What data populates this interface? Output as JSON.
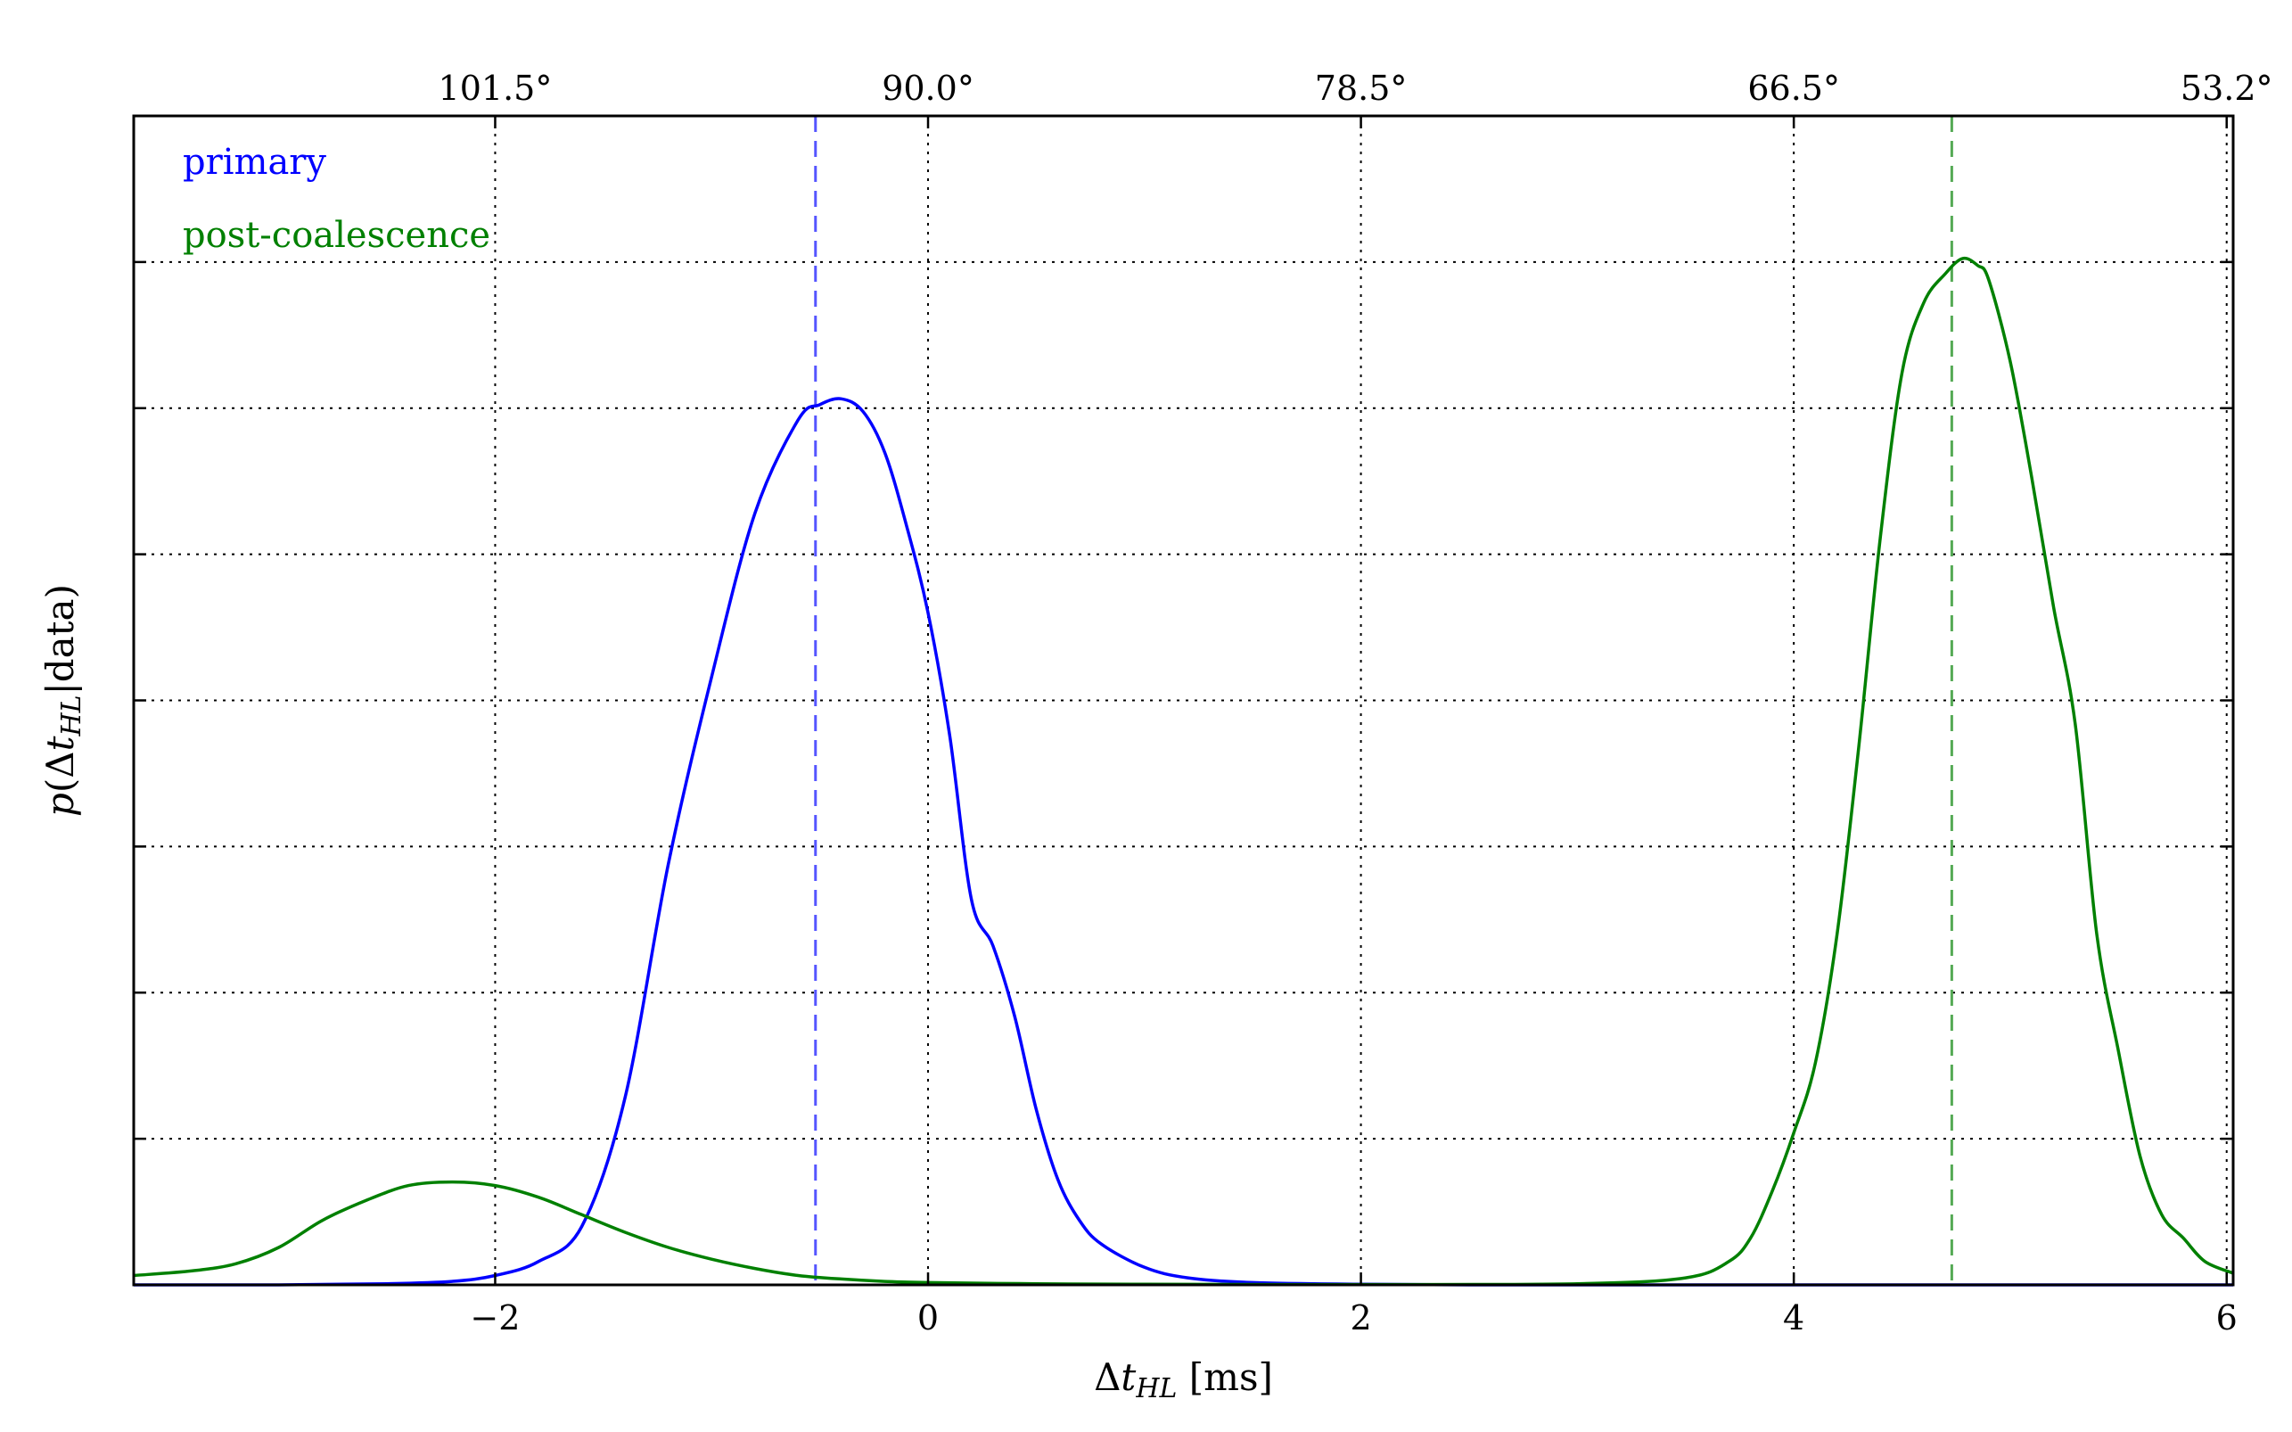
{
  "chart_data": {
    "type": "line",
    "xlim": [
      -3.67,
      6.03
    ],
    "ylim": [
      0,
      1.0
    ],
    "x_ticks": [
      {
        "value": -2,
        "label": "−2"
      },
      {
        "value": 0,
        "label": "0"
      },
      {
        "value": 2,
        "label": "2"
      },
      {
        "value": 4,
        "label": "4"
      },
      {
        "value": 6,
        "label": "6"
      }
    ],
    "top_ticks": [
      {
        "value": -2.0,
        "label": "101.5°"
      },
      {
        "value": 0.0,
        "label": "90.0°"
      },
      {
        "value": 2.0,
        "label": "78.5°"
      },
      {
        "value": 4.0,
        "label": "66.5°"
      },
      {
        "value": 6.0,
        "label": "53.2°"
      }
    ],
    "y_grid": [
      0.125,
      0.25,
      0.375,
      0.5,
      0.625,
      0.75,
      0.875
    ],
    "grid": true,
    "legend_placement": "top-left",
    "xlabel": {
      "prefix": "Δ",
      "var": "t",
      "sub": "HL",
      "unit": " [ms]"
    },
    "ylabel": {
      "p": "p",
      "open": "(Δ",
      "var": "t",
      "sub": "HL",
      "rest": "|data)"
    },
    "series": [
      {
        "name": "primary",
        "color": "#0000ff",
        "x": [
          -3.67,
          -3.0,
          -2.5,
          -2.2,
          -2.0,
          -1.8,
          -1.6,
          -1.4,
          -1.2,
          -1.0,
          -0.8,
          -0.6,
          -0.5,
          -0.4,
          -0.3,
          -0.2,
          -0.1,
          0.0,
          0.1,
          0.2,
          0.3,
          0.4,
          0.5,
          0.6,
          0.7,
          0.8,
          1.0,
          1.2,
          1.5,
          2.0,
          2.5,
          3.0,
          4.0,
          5.0,
          6.03
        ],
        "y": [
          0.0,
          0.0,
          0.001,
          0.003,
          0.008,
          0.02,
          0.05,
          0.16,
          0.36,
          0.52,
          0.66,
          0.74,
          0.753,
          0.758,
          0.747,
          0.712,
          0.65,
          0.575,
          0.47,
          0.33,
          0.29,
          0.23,
          0.15,
          0.09,
          0.055,
          0.035,
          0.015,
          0.006,
          0.002,
          0.0005,
          0.0,
          0.0,
          0.0,
          0.0,
          0.0
        ]
      },
      {
        "name": "post-coalescence",
        "color": "#008000",
        "x": [
          -3.67,
          -3.4,
          -3.2,
          -3.0,
          -2.8,
          -2.6,
          -2.4,
          -2.2,
          -2.0,
          -1.8,
          -1.6,
          -1.4,
          -1.2,
          -1.0,
          -0.8,
          -0.6,
          -0.4,
          -0.2,
          0.0,
          0.5,
          1.0,
          2.0,
          3.0,
          3.5,
          3.7,
          3.8,
          3.9,
          4.0,
          4.1,
          4.2,
          4.3,
          4.4,
          4.5,
          4.6,
          4.7,
          4.78,
          4.85,
          4.9,
          5.0,
          5.1,
          5.2,
          5.3,
          5.4,
          5.5,
          5.6,
          5.7,
          5.8,
          5.9,
          6.03
        ],
        "y": [
          0.008,
          0.012,
          0.018,
          0.032,
          0.055,
          0.072,
          0.085,
          0.088,
          0.085,
          0.075,
          0.06,
          0.045,
          0.032,
          0.022,
          0.014,
          0.008,
          0.005,
          0.003,
          0.002,
          0.001,
          0.0005,
          0.0003,
          0.001,
          0.006,
          0.02,
          0.04,
          0.08,
          0.13,
          0.19,
          0.3,
          0.46,
          0.64,
          0.78,
          0.84,
          0.865,
          0.878,
          0.872,
          0.86,
          0.79,
          0.69,
          0.58,
          0.48,
          0.3,
          0.2,
          0.11,
          0.06,
          0.04,
          0.02,
          0.01
        ]
      }
    ],
    "vlines": [
      {
        "series": "primary",
        "x": -0.52,
        "color": "#5555ff"
      },
      {
        "series": "post-coalescence",
        "x": 4.73,
        "color": "#55aa55"
      }
    ]
  }
}
